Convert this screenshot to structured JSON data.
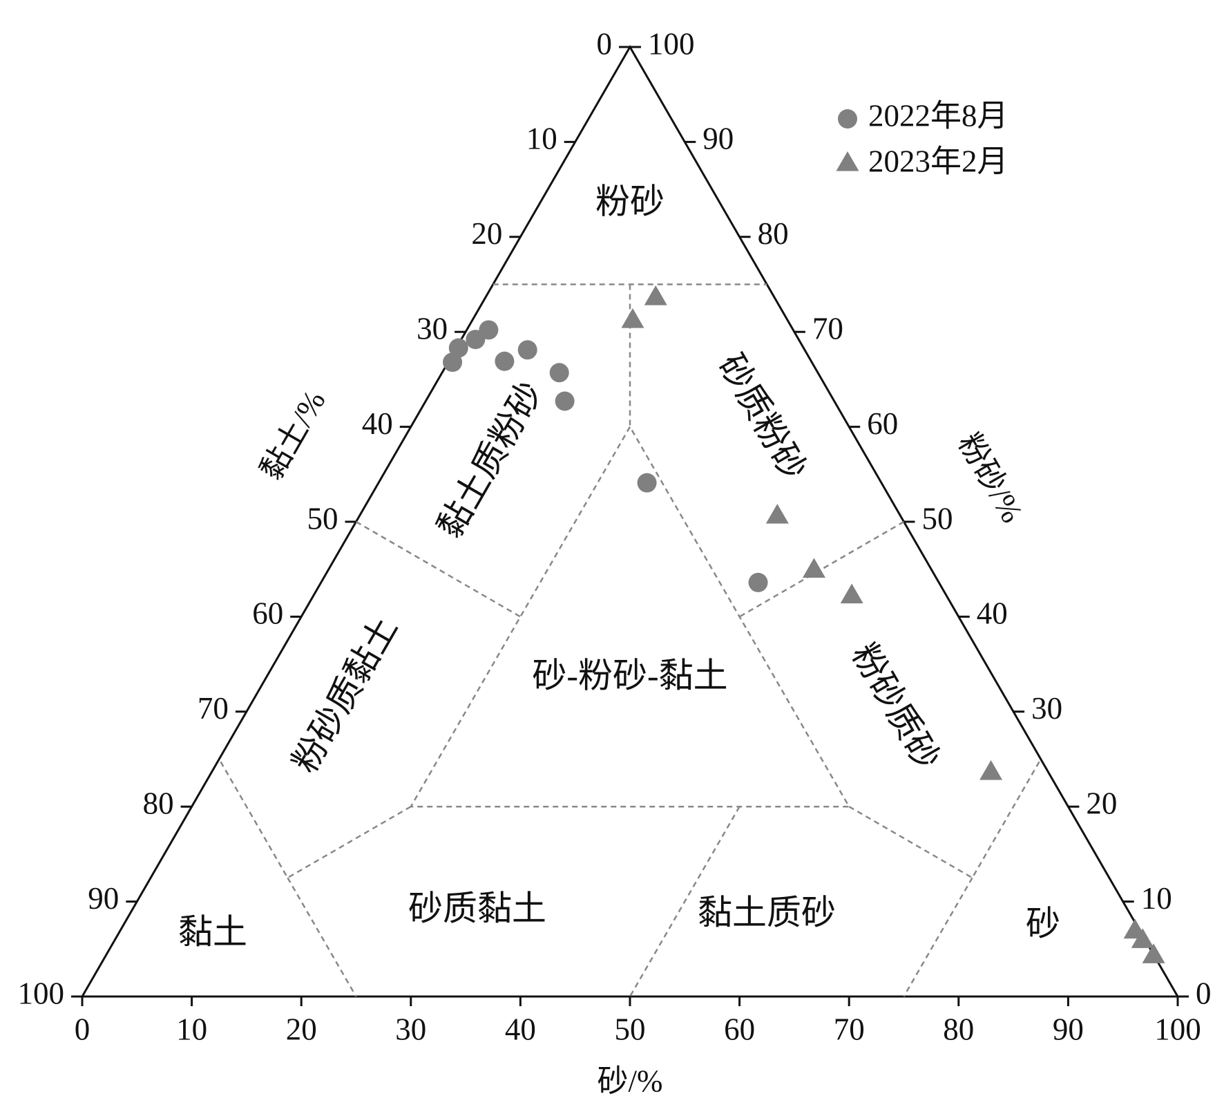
{
  "chart_data": {
    "type": "ternary",
    "sand_label": "砂/%",
    "clay_label": "黏土/%",
    "silt_label": "粉砂/%",
    "sand_ticks": [
      0,
      10,
      20,
      30,
      40,
      50,
      60,
      70,
      80,
      90,
      100
    ],
    "clay_ticks": [
      0,
      10,
      20,
      30,
      40,
      50,
      60,
      70,
      80,
      90,
      100
    ],
    "silt_ticks": [
      0,
      10,
      20,
      30,
      40,
      50,
      60,
      70,
      80,
      90,
      100
    ],
    "regions": [
      "粉砂",
      "黏土质粉砂",
      "砂质粉砂",
      "粉砂质黏土",
      "砂-粉砂-黏土",
      "粉砂质砂",
      "黏土",
      "砂质黏土",
      "黏土质砂",
      "砂"
    ],
    "legend": "upper right",
    "series": [
      {
        "name": "2022年8月",
        "marker": "circle",
        "color": "#808080",
        "sand": [
          0.4,
          0.2,
          1.3,
          2.0,
          5.1,
          6.6,
          10.7,
          12.7,
          24.5,
          39.9
        ],
        "silt": [
          66.8,
          68.3,
          69.2,
          70.2,
          66.9,
          68.1,
          65.7,
          62.7,
          54.1,
          43.6
        ],
        "clay": [
          32.8,
          31.5,
          29.5,
          27.8,
          28.0,
          25.3,
          23.6,
          24.6,
          21.4,
          16.5
        ]
      },
      {
        "name": "2023年2月",
        "marker": "triangle",
        "color": "#808080",
        "sand": [
          15.6,
          14.7,
          38.2,
          44.4,
          49.2,
          71.2,
          92.7,
          93.9,
          95.7
        ],
        "silt": [
          73.5,
          71.1,
          50.5,
          44.8,
          42.1,
          23.5,
          6.8,
          5.8,
          4.2
        ],
        "clay": [
          10.9,
          14.2,
          11.3,
          10.8,
          8.7,
          5.3,
          0.5,
          0.3,
          0.1
        ]
      }
    ]
  }
}
